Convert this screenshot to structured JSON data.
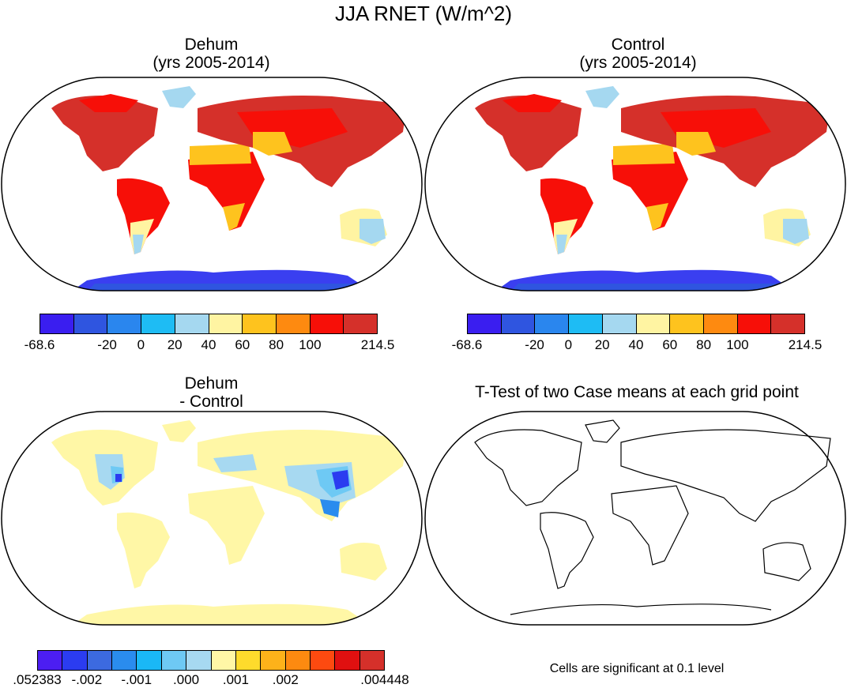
{
  "title": "JJA RNET (W/m^2)",
  "panels": {
    "dehum": {
      "title1": "Dehum",
      "title2": "(yrs 2005-2014)"
    },
    "control": {
      "title1": "Control",
      "title2": "(yrs 2005-2014)"
    },
    "diff": {
      "title1": "Dehum",
      "title2": "- Control"
    },
    "ttest": {
      "title1": "T-Test of two Case means at each grid point"
    }
  },
  "colorbar_abs": {
    "colors": [
      "#3a1ef0",
      "#2f55e0",
      "#2a86ee",
      "#1ebcf4",
      "#a5d8f0",
      "#fff4a2",
      "#fec31e",
      "#fe8a10",
      "#f70f08",
      "#d5302a"
    ],
    "labels": [
      "-68.6",
      "-20",
      "0",
      "20",
      "40",
      "60",
      "80",
      "100",
      "214.5"
    ]
  },
  "colorbar_diff": {
    "colors": [
      "#4c1ef2",
      "#2b3cf0",
      "#3c6ae0",
      "#2a8cee",
      "#1ab8f6",
      "#6ec9f4",
      "#a7d9f1",
      "#fff7a6",
      "#fedb2c",
      "#fdb21a",
      "#fd8a10",
      "#fd4a10",
      "#e01010",
      "#d5302a"
    ],
    "labels": [
      ".052383",
      "-.002",
      "-.001",
      ".000",
      ".001",
      ".002",
      ".004448"
    ]
  },
  "note": "Cells are significant at 0.1 level"
}
